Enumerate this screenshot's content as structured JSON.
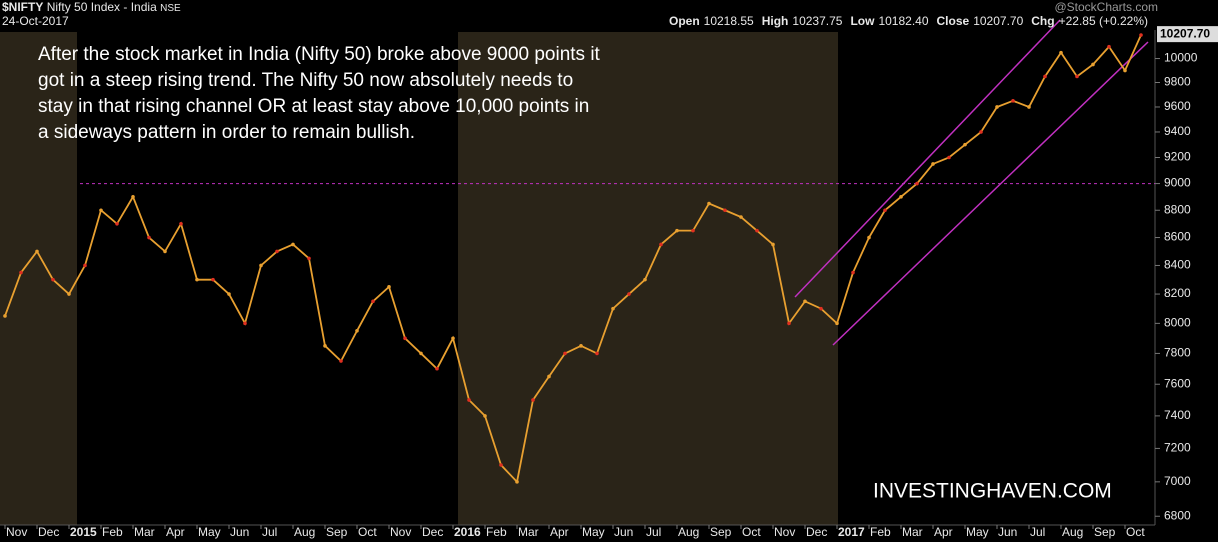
{
  "chart_data": {
    "type": "line",
    "symbol": "$NIFTY",
    "name": "Nifty 50 Index - India",
    "exchange": "NSE",
    "date": "24-Oct-2017",
    "source": "@StockCharts.com",
    "quote": [
      {
        "label": "Open",
        "value": "10218.55"
      },
      {
        "label": "High",
        "value": "10237.75"
      },
      {
        "label": "Low",
        "value": "10182.40"
      },
      {
        "label": "Close",
        "value": "10207.70"
      },
      {
        "label": "Chg",
        "value": "+22.85 (+0.22%)"
      }
    ],
    "annotation_lines": [
      "After the stock market in India (Nifty 50) broke above 9000 points it",
      "got in a steep rising trend. The Nifty 50 now absolutely needs to",
      "stay in that rising channel OR at least stay above 10,000 points in",
      "a sideways pattern in order to remain bullish."
    ],
    "watermark": "INVESTINGHAVEN.COM",
    "categories": [
      "Nov",
      null,
      "Dec",
      null,
      "2015",
      null,
      "Feb",
      null,
      "Mar",
      null,
      "Apr",
      null,
      "May",
      null,
      "Jun",
      null,
      "Jul",
      null,
      "Aug",
      null,
      "Sep",
      null,
      "Oct",
      null,
      "Nov",
      null,
      "Dec",
      null,
      "2016",
      null,
      "Feb",
      null,
      "Mar",
      null,
      "Apr",
      null,
      "May",
      null,
      "Jun",
      null,
      "Jul",
      null,
      "Aug",
      null,
      "Sep",
      null,
      "Oct",
      null,
      "Nov",
      null,
      "Dec",
      null,
      "2017",
      null,
      "Feb",
      null,
      "Mar",
      null,
      "Apr",
      null,
      "May",
      null,
      "Jun",
      null,
      "Jul",
      null,
      "Aug",
      null,
      "Sep",
      null,
      "Oct",
      null
    ],
    "values": [
      8050,
      8350,
      8500,
      8300,
      8200,
      8400,
      8800,
      8700,
      8900,
      8600,
      8500,
      8700,
      8300,
      8300,
      8200,
      8000,
      8400,
      8500,
      8550,
      8450,
      7850,
      7750,
      7950,
      8150,
      8250,
      7900,
      7800,
      7700,
      7900,
      7500,
      7400,
      7100,
      7000,
      7500,
      7650,
      7800,
      7850,
      7800,
      8100,
      8200,
      8300,
      8550,
      8650,
      8650,
      8850,
      8800,
      8750,
      8650,
      8550,
      8000,
      8150,
      8100,
      8000,
      8350,
      8600,
      8800,
      8900,
      9000,
      9150,
      9200,
      9300,
      9400,
      9600,
      9650,
      9600,
      9850,
      10050,
      9850,
      9950,
      10100,
      9900,
      10200
    ],
    "color": "#e8a030",
    "last": {
      "value": 10207.7,
      "label": "10207.70"
    },
    "reference_line": 9000,
    "log_scale": true,
    "ylim": [
      6750,
      10330
    ],
    "yticks": [
      6800,
      7000,
      7200,
      7400,
      7600,
      7800,
      8000,
      8200,
      8400,
      8600,
      8800,
      9000,
      9200,
      9400,
      9600,
      9800,
      10000
    ]
  }
}
